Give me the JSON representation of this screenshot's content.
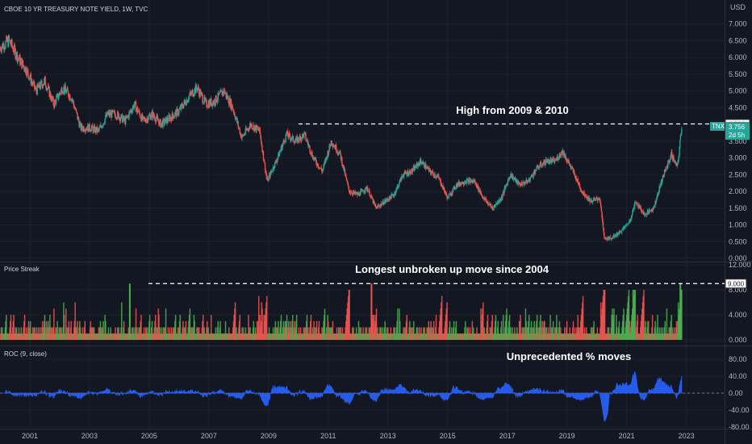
{
  "header": {
    "main_title": "CBOE 10 YR TREASURY NOTE YIELD, 1W, TVC",
    "currency": "USD"
  },
  "price_pane": {
    "annotation": "High from 2009 & 2010",
    "level_tag": "4.014",
    "level_value": 4.014,
    "ticker_tag": {
      "symbol": "TNX",
      "price": "3.756",
      "countdown": "2d 5h"
    },
    "y_ticks": [
      "7.000",
      "6.500",
      "6.000",
      "5.500",
      "5.000",
      "4.500",
      "4.000",
      "3.500",
      "3.000",
      "2.500",
      "2.000",
      "1.500",
      "1.000",
      "0.500",
      "0.000"
    ],
    "ylim": [
      0,
      7.4
    ]
  },
  "streak_pane": {
    "title": "Price Streak",
    "annotation": "Longest unbroken up move since 2004",
    "level_tag": "9.000",
    "level_value": 9,
    "y_ticks": [
      "12.000",
      "8.000",
      "4.000",
      "0.000"
    ],
    "ylim": [
      0,
      12
    ]
  },
  "roc_pane": {
    "title": "ROC (9, close)",
    "annotation": "Unprecedented % moves",
    "y_ticks": [
      "80.00",
      "40.00",
      "0.00",
      "-40.00",
      "-80.00"
    ],
    "ylim": [
      -80,
      80
    ]
  },
  "x_axis": {
    "ticks": [
      "2001",
      "2003",
      "2005",
      "2007",
      "2009",
      "2011",
      "2013",
      "2015",
      "2017",
      "2019",
      "2021",
      "2023"
    ],
    "start_year": 2000,
    "end_year": 2023.2
  },
  "chart_data": {
    "type": "line",
    "title": "CBOE 10 YR TREASURY NOTE YIELD, 1W, TVC",
    "xlabel": "",
    "ylabel": "USD",
    "x": [
      2000.0,
      2000.3,
      2000.6,
      2000.9,
      2001.2,
      2001.5,
      2001.8,
      2002.1,
      2002.4,
      2002.7,
      2003.0,
      2003.3,
      2003.6,
      2003.9,
      2004.2,
      2004.5,
      2004.8,
      2005.1,
      2005.4,
      2005.7,
      2006.0,
      2006.3,
      2006.6,
      2006.9,
      2007.2,
      2007.5,
      2007.8,
      2008.1,
      2008.4,
      2008.7,
      2008.95,
      2009.3,
      2009.6,
      2009.9,
      2010.2,
      2010.5,
      2010.8,
      2011.1,
      2011.4,
      2011.7,
      2012.0,
      2012.3,
      2012.6,
      2012.9,
      2013.2,
      2013.5,
      2013.8,
      2014.1,
      2014.4,
      2014.7,
      2015.0,
      2015.3,
      2015.6,
      2015.9,
      2016.2,
      2016.5,
      2016.8,
      2017.1,
      2017.4,
      2017.7,
      2018.0,
      2018.3,
      2018.6,
      2018.85,
      2019.2,
      2019.5,
      2019.8,
      2020.1,
      2020.25,
      2020.5,
      2020.8,
      2021.1,
      2021.3,
      2021.6,
      2021.9,
      2022.2,
      2022.5,
      2022.7,
      2022.85
    ],
    "series": [
      {
        "name": "TNX",
        "values": [
          6.3,
          6.5,
          6.0,
          5.6,
          5.0,
          5.3,
          4.6,
          5.1,
          4.8,
          3.9,
          3.9,
          3.8,
          4.3,
          4.3,
          4.1,
          4.6,
          4.1,
          4.3,
          4.0,
          4.2,
          4.4,
          4.8,
          5.1,
          4.6,
          4.7,
          5.0,
          4.5,
          3.6,
          4.0,
          3.8,
          2.3,
          3.0,
          3.7,
          3.5,
          3.7,
          3.0,
          2.6,
          3.5,
          3.1,
          2.0,
          1.9,
          2.1,
          1.5,
          1.7,
          1.9,
          2.5,
          2.6,
          2.9,
          2.6,
          2.4,
          1.8,
          2.2,
          2.3,
          2.3,
          1.8,
          1.5,
          1.8,
          2.5,
          2.2,
          2.3,
          2.7,
          2.9,
          2.9,
          3.2,
          2.6,
          2.0,
          1.7,
          1.8,
          0.6,
          0.6,
          0.8,
          1.1,
          1.7,
          1.3,
          1.5,
          2.4,
          3.1,
          2.7,
          4.0
        ]
      }
    ],
    "ylim": [
      0,
      7.4
    ],
    "grid": true,
    "legend": "none"
  }
}
